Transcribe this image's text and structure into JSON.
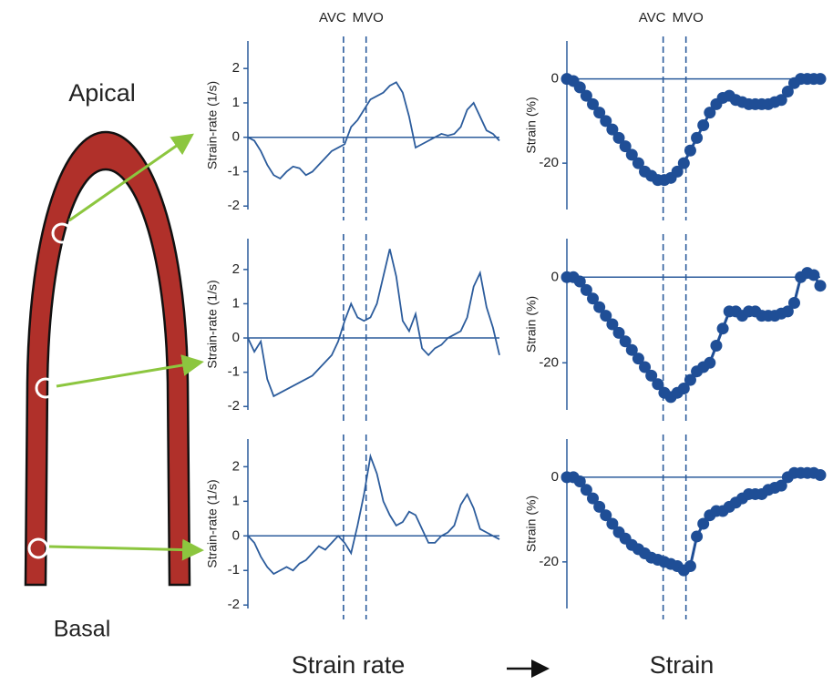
{
  "labels": {
    "apical": "Apical",
    "basal": "Basal",
    "strain_rate": "Strain rate",
    "strain": "Strain"
  },
  "chart_data": [
    {
      "type": "line",
      "ylabel": "Strain-rate (1/s)",
      "annotations": [
        "AVC",
        "MVO"
      ],
      "color": "#2c5c9c",
      "markers": false,
      "ylim": [
        -2.1,
        2.8
      ],
      "yticks": [
        -2,
        -1,
        0,
        1,
        2
      ],
      "values": [
        0,
        -0.1,
        -0.4,
        -0.8,
        -1.1,
        -1.2,
        -1.0,
        -0.85,
        -0.9,
        -1.1,
        -1.0,
        -0.8,
        -0.6,
        -0.4,
        -0.3,
        -0.2,
        0.3,
        0.5,
        0.8,
        1.1,
        1.2,
        1.3,
        1.5,
        1.6,
        1.3,
        0.6,
        -0.3,
        -0.2,
        -0.1,
        0,
        0.1,
        0.05,
        0.1,
        0.3,
        0.8,
        1.0,
        0.6,
        0.2,
        0.1,
        -0.1
      ]
    },
    {
      "type": "line",
      "ylabel": "Strain-rate (1/s)",
      "color": "#2c5c9c",
      "markers": false,
      "ylim": [
        -2.1,
        2.9
      ],
      "yticks": [
        -2,
        -1,
        0,
        1,
        2
      ],
      "values": [
        0,
        -0.4,
        -0.1,
        -1.2,
        -1.7,
        -1.6,
        -1.5,
        -1.4,
        -1.3,
        -1.2,
        -1.1,
        -0.9,
        -0.7,
        -0.5,
        -0.1,
        0.5,
        1.0,
        0.6,
        0.5,
        0.6,
        1.0,
        1.8,
        2.6,
        1.8,
        0.5,
        0.2,
        0.7,
        -0.3,
        -0.5,
        -0.3,
        -0.2,
        0,
        0.1,
        0.2,
        0.6,
        1.5,
        1.9,
        0.9,
        0.3,
        -0.5
      ]
    },
    {
      "type": "line",
      "ylabel": "Strain-rate (1/s)",
      "color": "#2c5c9c",
      "markers": false,
      "ylim": [
        -2.1,
        2.8
      ],
      "yticks": [
        -2,
        -1,
        0,
        1,
        2
      ],
      "values": [
        0,
        -0.2,
        -0.6,
        -0.9,
        -1.1,
        -1.0,
        -0.9,
        -1.0,
        -0.8,
        -0.7,
        -0.5,
        -0.3,
        -0.4,
        -0.2,
        0,
        -0.2,
        -0.5,
        0.3,
        1.2,
        2.3,
        1.8,
        1.0,
        0.6,
        0.3,
        0.4,
        0.7,
        0.6,
        0.2,
        -0.2,
        -0.2,
        0,
        0.1,
        0.3,
        0.9,
        1.2,
        0.8,
        0.2,
        0.1,
        0,
        -0.1
      ]
    },
    {
      "type": "line",
      "ylabel": "Strain (%)",
      "annotations": [
        "AVC",
        "MVO"
      ],
      "color": "#1f4e96",
      "markers": true,
      "ylim": [
        -31,
        9
      ],
      "yticks": [
        -20,
        0
      ],
      "values": [
        0,
        -0.5,
        -2,
        -4,
        -6,
        -8,
        -10,
        -12,
        -14,
        -16,
        -18,
        -20,
        -22,
        -23,
        -24,
        -24,
        -23.5,
        -22,
        -20,
        -17,
        -14,
        -11,
        -8,
        -6,
        -4.5,
        -4,
        -5,
        -5.5,
        -6,
        -6,
        -6,
        -6,
        -5.5,
        -5,
        -3,
        -1,
        0,
        0,
        0,
        0
      ]
    },
    {
      "type": "line",
      "ylabel": "Strain (%)",
      "color": "#1f4e96",
      "markers": true,
      "ylim": [
        -31,
        9
      ],
      "yticks": [
        -20,
        0
      ],
      "values": [
        0,
        0,
        -1,
        -3,
        -5,
        -7,
        -9,
        -11,
        -13,
        -15,
        -17,
        -19,
        -21,
        -23,
        -25,
        -27,
        -28,
        -27,
        -26,
        -24,
        -22,
        -21,
        -20,
        -16,
        -12,
        -8,
        -8,
        -9,
        -8,
        -8,
        -9,
        -9,
        -9,
        -8.5,
        -8,
        -6,
        0,
        1,
        0.5,
        -2
      ]
    },
    {
      "type": "line",
      "ylabel": "Strain (%)",
      "color": "#1f4e96",
      "markers": true,
      "ylim": [
        -31,
        9
      ],
      "yticks": [
        -20,
        0
      ],
      "values": [
        0,
        0,
        -1,
        -3,
        -5,
        -7,
        -9,
        -11,
        -13,
        -14.5,
        -16,
        -17,
        -18,
        -19,
        -19.5,
        -20,
        -20.5,
        -21,
        -22,
        -21,
        -14,
        -11,
        -9,
        -8,
        -8,
        -7,
        -6,
        -5,
        -4,
        -4,
        -4,
        -3,
        -2.5,
        -2,
        0,
        1,
        1,
        1,
        1,
        0.5
      ]
    }
  ]
}
